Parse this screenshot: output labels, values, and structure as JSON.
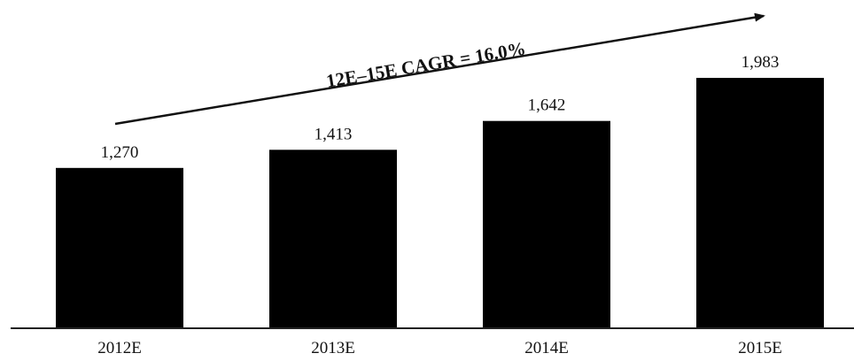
{
  "chart_data": {
    "type": "bar",
    "categories": [
      "2012E",
      "2013E",
      "2014E",
      "2015E"
    ],
    "values": [
      1270,
      1413,
      1642,
      1983
    ],
    "data_labels": [
      "1,270",
      "1,413",
      "1,642",
      "1,983"
    ],
    "title": "",
    "xlabel": "",
    "ylabel": "",
    "ylim": [
      0,
      2200
    ],
    "grid": false,
    "legend": "none",
    "annotation": {
      "text": "12E–15E CAGR = 16.0%",
      "type": "arrow"
    },
    "colors": {
      "bar": "#000000",
      "axis": "#222222",
      "text": "#111111"
    }
  }
}
